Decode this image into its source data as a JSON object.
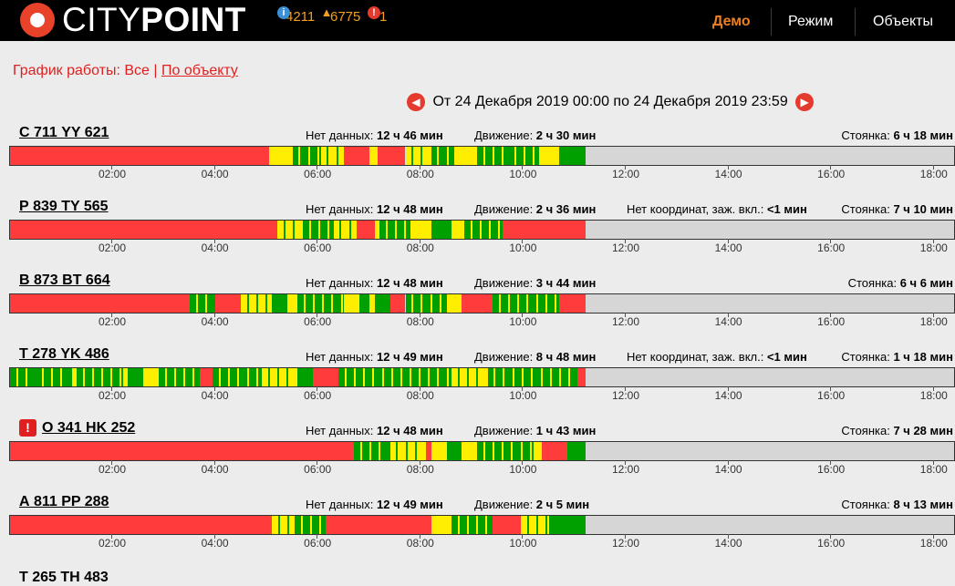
{
  "header": {
    "logo_light": "CITY",
    "logo_bold": "POINT",
    "stats": [
      {
        "icon": "info-icon",
        "value": "4211",
        "color": "#3a8fd6"
      },
      {
        "icon": "warning-icon",
        "value": "6775",
        "color": "#f0a020"
      },
      {
        "icon": "alert-icon",
        "value": "1",
        "color": "#e53a2e"
      }
    ],
    "menu": [
      "Демо",
      "Режим",
      "Объекты"
    ],
    "active_menu": "Демо"
  },
  "schedule": {
    "label": "График работы: Все",
    "separator": "|",
    "link": "По объекту"
  },
  "range": {
    "text": "От 24 Декабря 2019 00:00 по 24 Декабря 2019 23:59"
  },
  "ticks": [
    "02:00",
    "04:00",
    "06:00",
    "08:00",
    "10:00",
    "12:00",
    "14:00",
    "16:00",
    "18:00"
  ],
  "colors": {
    "no_data": "#ff3b3b",
    "moving": "#00a000",
    "idle": "#ffee00",
    "future": "#d6d6d6"
  },
  "vehicles": [
    {
      "plate": "С 711 YY 621",
      "alert": false,
      "metrics": [
        {
          "label": "Нет данных:",
          "value": "12 ч 46 мин"
        },
        {
          "label": "Движение:",
          "value": "2 ч 30 мин"
        },
        {
          "label": "Стоянка:",
          "value": "6 ч 18 мин"
        }
      ],
      "segments": [
        [
          0,
          5.05,
          "no_data"
        ],
        [
          5.05,
          5.1,
          "idle"
        ],
        [
          5.1,
          5.5,
          "idle"
        ],
        [
          5.5,
          6.05,
          "moving"
        ],
        [
          6.05,
          6.5,
          "idle"
        ],
        [
          6.5,
          6.7,
          "no_data"
        ],
        [
          6.7,
          7.0,
          "no_data"
        ],
        [
          7.0,
          7.15,
          "idle"
        ],
        [
          7.15,
          7.7,
          "no_data"
        ],
        [
          7.7,
          8.2,
          "idle"
        ],
        [
          8.2,
          8.65,
          "moving"
        ],
        [
          8.65,
          9.1,
          "idle"
        ],
        [
          9.1,
          9.7,
          "moving"
        ],
        [
          9.7,
          10.3,
          "moving"
        ],
        [
          10.3,
          10.7,
          "idle"
        ],
        [
          10.7,
          10.95,
          "moving"
        ],
        [
          10.95,
          11.2,
          "moving"
        ]
      ]
    },
    {
      "plate": "Р 839 TY 565",
      "alert": false,
      "metrics": [
        {
          "label": "Нет данных:",
          "value": "12 ч 48 мин"
        },
        {
          "label": "Движение:",
          "value": "2 ч 36 мин"
        },
        {
          "label": "Нет координат, заж. вкл.:",
          "value": "<1 мин"
        },
        {
          "label": "Стоянка:",
          "value": "7 ч 10 мин"
        }
      ],
      "segments": [
        [
          0,
          5.2,
          "no_data"
        ],
        [
          5.2,
          5.7,
          "idle"
        ],
        [
          5.7,
          6.3,
          "moving"
        ],
        [
          6.3,
          6.75,
          "idle"
        ],
        [
          6.75,
          7.1,
          "no_data"
        ],
        [
          7.1,
          7.2,
          "idle"
        ],
        [
          7.2,
          7.8,
          "moving"
        ],
        [
          7.8,
          8.2,
          "idle"
        ],
        [
          8.2,
          8.6,
          "moving"
        ],
        [
          8.6,
          8.85,
          "idle"
        ],
        [
          8.85,
          9.6,
          "moving"
        ],
        [
          9.6,
          10.1,
          "no_data"
        ],
        [
          10.1,
          11.2,
          "no_data"
        ]
      ]
    },
    {
      "plate": "В 873 BT 664",
      "alert": false,
      "metrics": [
        {
          "label": "Нет данных:",
          "value": "12 ч 48 мин"
        },
        {
          "label": "Движение:",
          "value": "3 ч 44 мин"
        },
        {
          "label": "Стоянка:",
          "value": "6 ч 6 мин"
        }
      ],
      "segments": [
        [
          0,
          3.5,
          "no_data"
        ],
        [
          3.5,
          4.0,
          "moving"
        ],
        [
          4.0,
          4.5,
          "no_data"
        ],
        [
          4.5,
          5.1,
          "idle"
        ],
        [
          5.1,
          5.4,
          "moving"
        ],
        [
          5.4,
          5.6,
          "idle"
        ],
        [
          5.6,
          6.5,
          "moving"
        ],
        [
          6.5,
          6.8,
          "idle"
        ],
        [
          6.8,
          7.0,
          "moving"
        ],
        [
          7.0,
          7.1,
          "idle"
        ],
        [
          7.1,
          7.4,
          "moving"
        ],
        [
          7.4,
          7.7,
          "no_data"
        ],
        [
          7.7,
          8.5,
          "moving"
        ],
        [
          8.5,
          8.8,
          "idle"
        ],
        [
          8.8,
          9.4,
          "no_data"
        ],
        [
          9.4,
          10.7,
          "moving"
        ],
        [
          10.7,
          11.2,
          "no_data"
        ]
      ]
    },
    {
      "plate": "Т 278 YK 486",
      "alert": false,
      "metrics": [
        {
          "label": "Нет данных:",
          "value": "12 ч 49 мин"
        },
        {
          "label": "Движение:",
          "value": "8 ч 48 мин"
        },
        {
          "label": "Нет координат, заж. вкл.:",
          "value": "<1 мин"
        },
        {
          "label": "Стоянка:",
          "value": "1 ч 18 мин"
        }
      ],
      "segments": [
        [
          0,
          0.5,
          "moving"
        ],
        [
          0.5,
          1.2,
          "moving"
        ],
        [
          1.2,
          1.3,
          "idle"
        ],
        [
          1.3,
          2.2,
          "moving"
        ],
        [
          2.2,
          2.3,
          "idle"
        ],
        [
          2.3,
          2.6,
          "moving"
        ],
        [
          2.6,
          2.9,
          "idle"
        ],
        [
          2.9,
          3.7,
          "moving"
        ],
        [
          3.7,
          3.95,
          "no_data"
        ],
        [
          3.95,
          4.9,
          "moving"
        ],
        [
          4.9,
          5.6,
          "idle"
        ],
        [
          5.6,
          5.9,
          "moving"
        ],
        [
          5.9,
          6.4,
          "no_data"
        ],
        [
          6.4,
          8.6,
          "moving"
        ],
        [
          8.6,
          9.3,
          "idle"
        ],
        [
          9.3,
          9.85,
          "moving"
        ],
        [
          9.85,
          11.05,
          "moving"
        ],
        [
          11.05,
          11.2,
          "no_data"
        ]
      ]
    },
    {
      "plate": "О 341 HK 252",
      "alert": true,
      "metrics": [
        {
          "label": "Нет данных:",
          "value": "12 ч 48 мин"
        },
        {
          "label": "Движение:",
          "value": "1 ч 43 мин"
        },
        {
          "label": "Стоянка:",
          "value": "7 ч 28 мин"
        }
      ],
      "segments": [
        [
          0,
          6.7,
          "no_data"
        ],
        [
          6.7,
          7.4,
          "moving"
        ],
        [
          7.4,
          8.1,
          "idle"
        ],
        [
          8.1,
          8.2,
          "no_data"
        ],
        [
          8.2,
          8.5,
          "idle"
        ],
        [
          8.5,
          8.8,
          "moving"
        ],
        [
          8.8,
          9.1,
          "idle"
        ],
        [
          9.1,
          10.2,
          "moving"
        ],
        [
          10.2,
          10.35,
          "idle"
        ],
        [
          10.35,
          10.85,
          "no_data"
        ],
        [
          10.85,
          11.2,
          "moving"
        ]
      ]
    },
    {
      "plate": "А 811 PP 288",
      "alert": false,
      "metrics": [
        {
          "label": "Нет данных:",
          "value": "12 ч 49 мин"
        },
        {
          "label": "Движение:",
          "value": "2 ч 5 мин"
        },
        {
          "label": "Стоянка:",
          "value": "8 ч 13 мин"
        }
      ],
      "segments": [
        [
          0,
          5.1,
          "no_data"
        ],
        [
          5.1,
          5.55,
          "idle"
        ],
        [
          5.55,
          6.15,
          "moving"
        ],
        [
          6.15,
          7.2,
          "no_data"
        ],
        [
          7.2,
          8.2,
          "no_data"
        ],
        [
          8.2,
          8.6,
          "idle"
        ],
        [
          8.6,
          9.4,
          "moving"
        ],
        [
          9.4,
          9.95,
          "no_data"
        ],
        [
          9.95,
          10.5,
          "idle"
        ],
        [
          10.5,
          10.8,
          "moving"
        ],
        [
          10.8,
          11.2,
          "moving"
        ]
      ]
    }
  ],
  "next_plate": "Т 265 ТН 483"
}
